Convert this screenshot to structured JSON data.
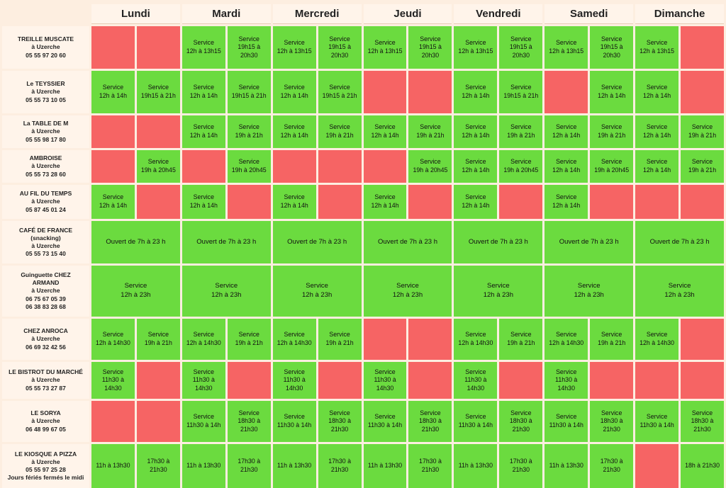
{
  "colors": {
    "open": "#6bdb3f",
    "closed": "#f66464",
    "header_bg": "#fff4ea"
  },
  "days": [
    "Lundi",
    "Mardi",
    "Mercredi",
    "Jeudi",
    "Vendredi",
    "Samedi",
    "Dimanche"
  ],
  "restaurants": [
    {
      "lines": [
        "TREILLE MUSCATE",
        "à Uzerche",
        "05 55 97 20 60"
      ],
      "days": [
        [
          "",
          ""
        ],
        [
          "Service\n12h à 13h15",
          "Service\n19h15 à\n20h30"
        ],
        [
          "Service\n12h à 13h15",
          "Service\n19h15 à\n20h30"
        ],
        [
          "Service\n12h à 13h15",
          "Service\n19h15 à\n20h30"
        ],
        [
          "Service\n12h à 13h15",
          "Service\n19h15 à\n20h30"
        ],
        [
          "Service\n12h à 13h15",
          "Service\n19h15 à\n20h30"
        ],
        [
          "Service\n12h à 13h15",
          ""
        ]
      ]
    },
    {
      "lines": [
        "Le TEYSSIER",
        "à Uzerche",
        "05 55 73 10 05"
      ],
      "days": [
        [
          "Service\n12h à 14h",
          "Service\n19h15 à 21h"
        ],
        [
          "Service\n12h à 14h",
          "Service\n19h15 à 21h"
        ],
        [
          "Service\n12h à 14h",
          "Service\n19h15 à 21h"
        ],
        [
          "",
          ""
        ],
        [
          "Service\n12h à 14h",
          "Service\n19h15 à 21h"
        ],
        [
          "",
          "Service\n12h à 14h"
        ],
        [
          "Service\n12h à 14h",
          ""
        ]
      ]
    },
    {
      "lines": [
        "La TABLE DE M",
        "à Uzerche",
        "05 55 98 17 80"
      ],
      "days": [
        [
          "",
          ""
        ],
        [
          "Service\n12h à 14h",
          "Service\n19h à 21h"
        ],
        [
          "Service\n12h à 14h",
          "Service\n19h à 21h"
        ],
        [
          "Service\n12h à 14h",
          "Service\n19h à 21h"
        ],
        [
          "Service\n12h à 14h",
          "Service\n19h à 21h"
        ],
        [
          "Service\n12h à 14h",
          "Service\n19h à 21h"
        ],
        [
          "Service\n12h à 14h",
          "Service\n19h à 21h"
        ]
      ]
    },
    {
      "lines": [
        "AMBROISE",
        "à Uzerche",
        "05 55 73 28 60"
      ],
      "days": [
        [
          "",
          "Service\n19h à 20h45"
        ],
        [
          "",
          "Service\n19h à 20h45"
        ],
        [
          "",
          ""
        ],
        [
          "",
          "Service\n19h à 20h45"
        ],
        [
          "Service\n12h à 14h",
          "Service\n19h à 20h45"
        ],
        [
          "Service\n12h à 14h",
          "Service\n19h à 20h45"
        ],
        [
          "Service\n12h à 14h",
          "Service\n19h à 21h"
        ]
      ]
    },
    {
      "lines": [
        "AU FIL DU TEMPS",
        "à Uzerche",
        "05 87 45 01 24"
      ],
      "days": [
        [
          "Service\n12h à 14h",
          ""
        ],
        [
          "Service\n12h à 14h",
          ""
        ],
        [
          "Service\n12h à 14h",
          ""
        ],
        [
          "Service\n12h à 14h",
          ""
        ],
        [
          "Service\n12h à 14h",
          ""
        ],
        [
          "Service\n12h à 14h",
          ""
        ],
        [
          "",
          ""
        ]
      ]
    },
    {
      "lines": [
        "CAFÉ DE FRANCE",
        "(snacking)",
        "à Uzerche",
        "05 55 73 15 40"
      ],
      "days": [
        [
          "Ouvert de 7h à 23 h"
        ],
        [
          "Ouvert de 7h à 23 h"
        ],
        [
          "Ouvert de 7h à 23 h"
        ],
        [
          "Ouvert de 7h à 23 h"
        ],
        [
          "Ouvert de 7h à 23 h"
        ],
        [
          "Ouvert de 7h à 23 h"
        ],
        [
          "Ouvert de 7h à 23 h"
        ]
      ]
    },
    {
      "lines": [
        "Guinguette CHEZ",
        "ARMAND",
        "à Uzerche",
        "06 75 67 05 39",
        "06 38 83 28 68"
      ],
      "days": [
        [
          "Service\n12h à 23h"
        ],
        [
          "Service\n12h à 23h"
        ],
        [
          "Service\n12h à 23h"
        ],
        [
          "Service\n12h à 23h"
        ],
        [
          "Service\n12h à 23h"
        ],
        [
          "Service\n12h à 23h"
        ],
        [
          "Service\n12h à 23h"
        ]
      ]
    },
    {
      "lines": [
        "CHEZ ANROCA",
        "à Uzerche",
        "06 69 32 42 56"
      ],
      "days": [
        [
          "Service\n12h à 14h30",
          "Service\n19h à 21h"
        ],
        [
          "Service\n12h à 14h30",
          "Service\n19h à 21h"
        ],
        [
          "Service\n12h à 14h30",
          "Service\n19h à 21h"
        ],
        [
          "",
          ""
        ],
        [
          "Service\n12h à 14h30",
          "Service\n19h à 21h"
        ],
        [
          "Service\n12h à 14h30",
          "Service\n19h à 21h"
        ],
        [
          "Service\n12h à 14h30",
          ""
        ]
      ]
    },
    {
      "lines": [
        "LE BISTROT DU MARCHÉ",
        "à Uzerche",
        "05 55 73 27 87"
      ],
      "days": [
        [
          "Service\n11h30 à\n14h30",
          ""
        ],
        [
          "Service\n11h30 à\n14h30",
          ""
        ],
        [
          "Service\n11h30 à\n14h30",
          ""
        ],
        [
          "Service\n11h30 à\n14h30",
          ""
        ],
        [
          "Service\n11h30 à\n14h30",
          ""
        ],
        [
          "Service\n11h30 à\n14h30",
          ""
        ],
        [
          "",
          ""
        ]
      ]
    },
    {
      "lines": [
        "LE SORYA",
        "à Uzerche",
        "06 48 99 67 05"
      ],
      "days": [
        [
          "",
          ""
        ],
        [
          "Service\n11h30 à 14h",
          "Service\n18h30 à\n21h30"
        ],
        [
          "Service\n11h30 à 14h",
          "Service\n18h30 à\n21h30"
        ],
        [
          "Service\n11h30 à 14h",
          "Service\n18h30 à\n21h30"
        ],
        [
          "Service\n11h30 à 14h",
          "Service\n18h30 à\n21h30"
        ],
        [
          "Service\n11h30 à 14h",
          "Service\n18h30 à\n21h30"
        ],
        [
          "Service\n11h30 à 14h",
          "Service\n18h30 à\n21h30"
        ]
      ]
    },
    {
      "lines": [
        "LE KIOSQUE A PIZZA",
        "à Uzerche",
        "05 55 97 25 28",
        "Jours fériés fermés le midi"
      ],
      "days": [
        [
          "11h à 13h30",
          "17h30 à\n21h30"
        ],
        [
          "11h à 13h30",
          "17h30 à\n21h30"
        ],
        [
          "11h à 13h30",
          "17h30 à\n21h30"
        ],
        [
          "11h à 13h30",
          "17h30 à\n21h30"
        ],
        [
          "11h à 13h30",
          "17h30 à\n21h30"
        ],
        [
          "11h à 13h30",
          "17h30 à\n21h30"
        ],
        [
          "",
          "18h à 21h30"
        ]
      ]
    }
  ]
}
